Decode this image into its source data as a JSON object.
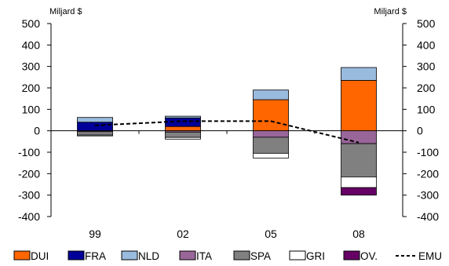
{
  "chart_data": {
    "type": "bar",
    "stacked": true,
    "y_unit_left": "Miljard $",
    "y_unit_right": "Miljard $",
    "categories": [
      "99",
      "02",
      "05",
      "08"
    ],
    "ylim": [
      -400,
      500
    ],
    "yticks": [
      500,
      400,
      300,
      200,
      100,
      0,
      -100,
      -200,
      -300,
      -400
    ],
    "grid": false,
    "legend_position": "bottom",
    "series": [
      {
        "name": "DUI",
        "type": "bar",
        "color": "#ff6600",
        "values": [
          0,
          20,
          145,
          235
        ]
      },
      {
        "name": "FRA",
        "type": "bar",
        "color": "#000099",
        "values": [
          40,
          40,
          0,
          0
        ]
      },
      {
        "name": "NLD",
        "type": "bar",
        "color": "#99bbdd",
        "values": [
          22,
          8,
          45,
          60
        ]
      },
      {
        "name": "ITA",
        "type": "bar",
        "color": "#996699",
        "values": [
          -4,
          -6,
          -30,
          -60
        ]
      },
      {
        "name": "SPA",
        "type": "bar",
        "color": "#808080",
        "values": [
          -16,
          -25,
          -75,
          -155
        ]
      },
      {
        "name": "GRI",
        "type": "bar",
        "color": "#ffffff",
        "values": [
          -4,
          -8,
          -22,
          -50
        ]
      },
      {
        "name": "OV.",
        "type": "bar",
        "color": "#660066",
        "values": [
          0,
          0,
          0,
          -35
        ]
      },
      {
        "name": "EMU",
        "type": "line",
        "color": "#000000",
        "dashed": true,
        "values": [
          25,
          45,
          45,
          -55
        ]
      }
    ]
  }
}
